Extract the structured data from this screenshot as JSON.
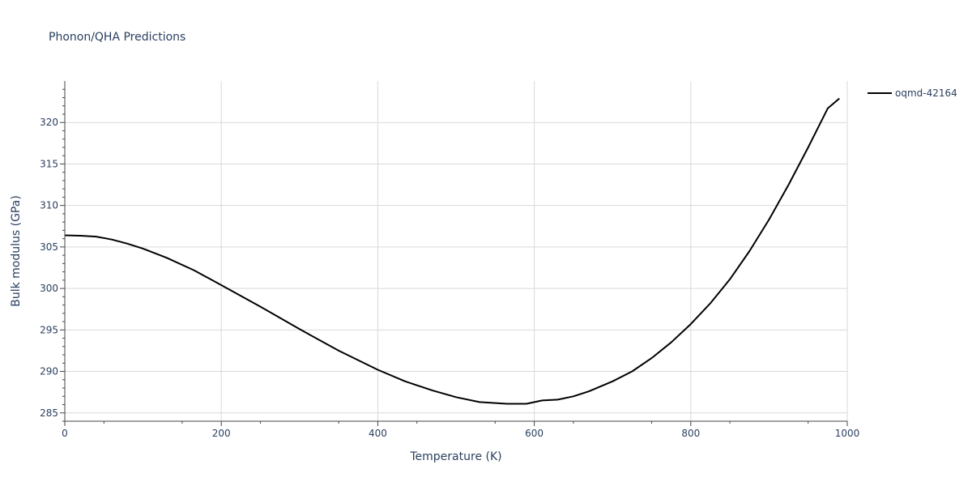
{
  "chart_data": {
    "type": "line",
    "title": "Phonon/QHA Predictions",
    "xlabel": "Temperature (K)",
    "ylabel": "Bulk modulus (GPa)",
    "xlim": [
      0,
      1000
    ],
    "ylim": [
      284,
      325
    ],
    "x_ticks": [
      0,
      200,
      400,
      600,
      800,
      1000
    ],
    "y_ticks": [
      285,
      290,
      295,
      300,
      305,
      310,
      315,
      320
    ],
    "grid": true,
    "legend_position": "top-right",
    "series": [
      {
        "name": "oqmd-42164",
        "color": "#000000",
        "x": [
          0,
          20,
          40,
          60,
          80,
          100,
          130,
          165,
          200,
          250,
          300,
          350,
          400,
          435,
          470,
          500,
          530,
          565,
          590,
          610,
          630,
          650,
          670,
          700,
          725,
          750,
          775,
          800,
          825,
          850,
          875,
          900,
          925,
          950,
          975,
          990
        ],
        "y": [
          306.4,
          306.35,
          306.25,
          305.9,
          305.4,
          304.8,
          303.7,
          302.2,
          300.4,
          297.8,
          295.1,
          292.5,
          290.2,
          288.8,
          287.7,
          286.9,
          286.3,
          286.1,
          286.1,
          286.5,
          286.6,
          287.0,
          287.6,
          288.8,
          290.0,
          291.6,
          293.5,
          295.7,
          298.2,
          301.1,
          304.5,
          308.3,
          312.5,
          317.0,
          321.7,
          322.9
        ]
      }
    ]
  }
}
